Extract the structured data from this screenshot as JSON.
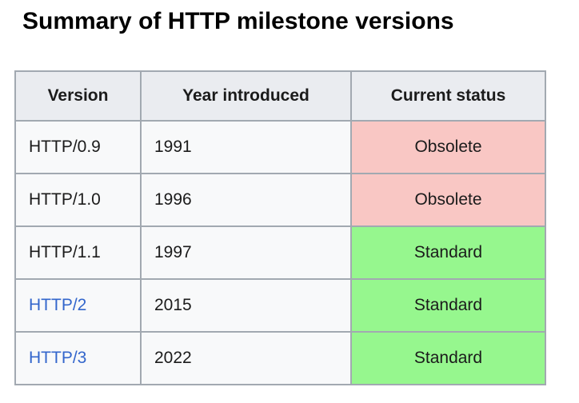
{
  "page": {
    "title": "Summary of HTTP milestone versions"
  },
  "table": {
    "headers": {
      "version": "Version",
      "year": "Year introduced",
      "status": "Current status"
    },
    "rows": [
      {
        "version": "HTTP/0.9",
        "is_link": false,
        "year": "1991",
        "status": "Obsolete",
        "status_color": "#f9c7c4"
      },
      {
        "version": "HTTP/1.0",
        "is_link": false,
        "year": "1996",
        "status": "Obsolete",
        "status_color": "#f9c7c4"
      },
      {
        "version": "HTTP/1.1",
        "is_link": false,
        "year": "1997",
        "status": "Standard",
        "status_color": "#96f78e"
      },
      {
        "version": "HTTP/2",
        "is_link": true,
        "year": "2015",
        "status": "Standard",
        "status_color": "#96f78e"
      },
      {
        "version": "HTTP/3",
        "is_link": true,
        "year": "2022",
        "status": "Standard",
        "status_color": "#96f78e"
      }
    ],
    "colors": {
      "header_bg": "#eaecf0",
      "cell_bg": "#f8f9fa",
      "border": "#a2a9b1",
      "obsolete_bg": "#f9c7c4",
      "standard_bg": "#96f78e",
      "link": "#3366cc",
      "text": "#1b1b1b"
    }
  }
}
